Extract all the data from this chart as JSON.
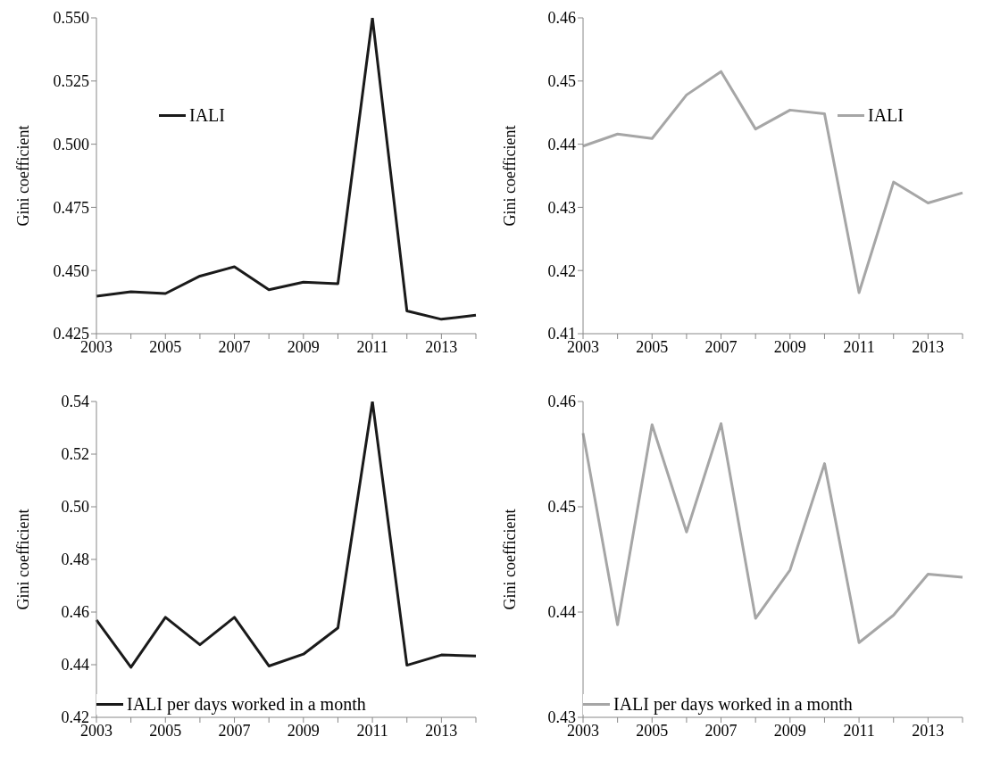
{
  "chart_data": [
    {
      "type": "line",
      "ylabel": "Gini coefficient",
      "categories": [
        "2003",
        null,
        "2005",
        null,
        "2007",
        null,
        "2009",
        null,
        "2011",
        null,
        "2013",
        null
      ],
      "ylim": [
        0.425,
        0.55
      ],
      "yticks": [
        {
          "value": 0.425,
          "label": "0.425"
        },
        {
          "value": 0.45,
          "label": "0.450"
        },
        {
          "value": 0.475,
          "label": "0.475"
        },
        {
          "value": 0.5,
          "label": "0.500"
        },
        {
          "value": 0.525,
          "label": "0.525"
        },
        {
          "value": 0.55,
          "label": "0.550"
        }
      ],
      "legend": "top left",
      "grid": false,
      "series": [
        {
          "name": "IALI",
          "color": "#1a1a1a",
          "values": [
            0.4398,
            0.4416,
            0.4409,
            0.4478,
            0.4515,
            0.4424,
            0.4454,
            0.4448,
            0.55,
            0.434,
            0.4307,
            0.4323
          ]
        }
      ]
    },
    {
      "type": "line",
      "ylabel": "Gini coefficient",
      "categories": [
        "2003",
        null,
        "2005",
        null,
        "2007",
        null,
        "2009",
        null,
        "2011",
        null,
        "2013",
        null
      ],
      "ylim": [
        0.41,
        0.46
      ],
      "yticks": [
        0.41,
        0.42,
        0.43,
        0.44,
        0.45,
        0.46
      ],
      "legend": "top right",
      "grid": false,
      "series": [
        {
          "name": "IALI",
          "color": "#a6a6a6",
          "values": [
            0.4397,
            0.4416,
            0.4409,
            0.4478,
            0.4515,
            0.4424,
            0.4454,
            0.4448,
            0.4165,
            0.434,
            0.4307,
            0.4323
          ]
        }
      ]
    },
    {
      "type": "line",
      "ylabel": "Gini coefficient",
      "categories": [
        "2003",
        null,
        "2005",
        null,
        "2007",
        null,
        "2009",
        null,
        "2011",
        null,
        "2013",
        null
      ],
      "ylim": [
        0.42,
        0.54
      ],
      "yticks": [
        0.42,
        0.44,
        0.46,
        0.48,
        {
          "value": 0.5,
          "label": "0.50"
        },
        0.52,
        0.54
      ],
      "legend": "bottom left",
      "grid": false,
      "series": [
        {
          "name": "IALI per days worked in a month",
          "color": "#1a1a1a",
          "values": [
            0.457,
            0.439,
            0.458,
            0.4476,
            0.458,
            0.4395,
            0.444,
            0.454,
            0.54,
            0.4398,
            0.4437,
            0.4433
          ]
        }
      ]
    },
    {
      "type": "line",
      "ylabel": "Gini coefficient",
      "categories": [
        "2003",
        null,
        "2005",
        null,
        "2007",
        null,
        "2009",
        null,
        "2011",
        null,
        "2013",
        null
      ],
      "ylim": [
        0.43,
        0.46
      ],
      "yticks": [
        0.43,
        0.44,
        0.45,
        0.46
      ],
      "legend": "bottom left",
      "grid": false,
      "series": [
        {
          "name": "IALI per days worked in a month",
          "color": "#a6a6a6",
          "values": [
            0.457,
            0.4388,
            0.4578,
            0.4476,
            0.4579,
            0.4394,
            0.444,
            0.4541,
            0.4371,
            0.4397,
            0.4436,
            0.4433
          ]
        }
      ]
    }
  ]
}
